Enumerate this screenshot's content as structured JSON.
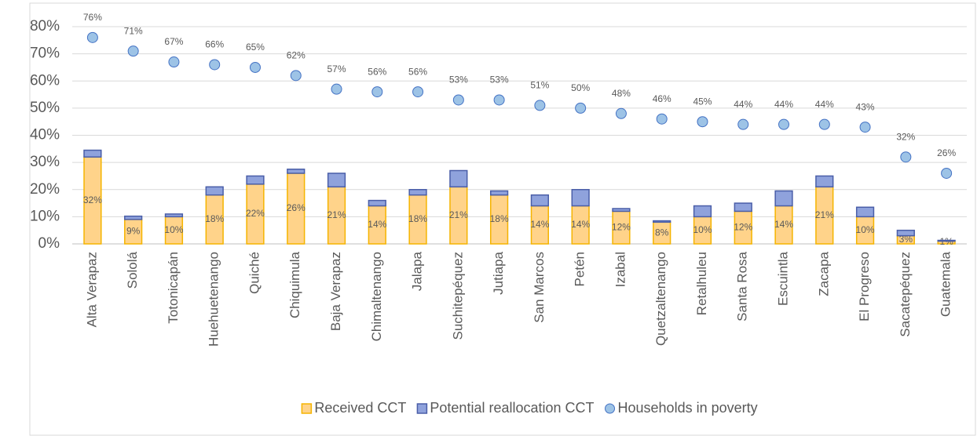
{
  "chart_data": {
    "type": "bar",
    "stacked": true,
    "categories": [
      "Alta Verapaz",
      "Sololá",
      "Totonicapán",
      "Huehuetenango",
      "Quiché",
      "Chiquimula",
      "Baja Verapaz",
      "Chimaltenango",
      "Jalapa",
      "Suchitepéquez",
      "Jutiapa",
      "San Marcos",
      "Petén",
      "Izabal",
      "Quetzaltenango",
      "Retalhuleu",
      "Santa Rosa",
      "Escuintla",
      "Zacapa",
      "El Progreso",
      "Sacatepéquez",
      "Guatemala"
    ],
    "series": [
      {
        "name": "Received CCT",
        "type": "bar",
        "color": "#ffd38a",
        "edge": "#f5b400",
        "values": [
          32,
          9,
          10,
          18,
          22,
          26,
          21,
          14,
          18,
          21,
          18,
          14,
          14,
          12,
          8,
          10,
          12,
          14,
          21,
          10,
          3,
          1
        ],
        "value_labels": [
          "32%",
          "9%",
          "10%",
          "18%",
          "22%",
          "26%",
          "21%",
          "14%",
          "18%",
          "21%",
          "18%",
          "14%",
          "14%",
          "12%",
          "8%",
          "10%",
          "12%",
          "14%",
          "21%",
          "10%",
          "3%",
          "1%"
        ]
      },
      {
        "name": "Potential reallocation CCT",
        "type": "bar",
        "color": "#8fa2dc",
        "edge": "#4a5ea8",
        "values": [
          2.5,
          1.2,
          1,
          3,
          3,
          1.5,
          5,
          2,
          2,
          6,
          1.5,
          4,
          6,
          1,
          0.5,
          4,
          3,
          5.5,
          4,
          3.5,
          2,
          0.3
        ]
      },
      {
        "name": "Households in poverty",
        "type": "scatter",
        "color": "#9dc3e6",
        "edge": "#4472c4",
        "values": [
          76,
          71,
          67,
          66,
          65,
          62,
          57,
          56,
          56,
          53,
          53,
          51,
          50,
          48,
          46,
          45,
          44,
          44,
          44,
          43,
          32,
          26
        ],
        "value_labels": [
          "76%",
          "71%",
          "67%",
          "66%",
          "65%",
          "62%",
          "57%",
          "56%",
          "56%",
          "53%",
          "53%",
          "51%",
          "50%",
          "48%",
          "46%",
          "45%",
          "44%",
          "44%",
          "44%",
          "43%",
          "32%",
          "26%"
        ]
      }
    ],
    "ylim": [
      0,
      80
    ],
    "yticks": [
      {
        "value": 0,
        "label": "0%"
      },
      {
        "value": 10,
        "label": "10%"
      },
      {
        "value": 20,
        "label": "20%"
      },
      {
        "value": 30,
        "label": "30%"
      },
      {
        "value": 40,
        "label": "40%"
      },
      {
        "value": 50,
        "label": "50%"
      },
      {
        "value": 60,
        "label": "60%"
      },
      {
        "value": 70,
        "label": "70%"
      },
      {
        "value": 80,
        "label": "80%"
      }
    ],
    "grid": true,
    "legend": "bottom"
  }
}
